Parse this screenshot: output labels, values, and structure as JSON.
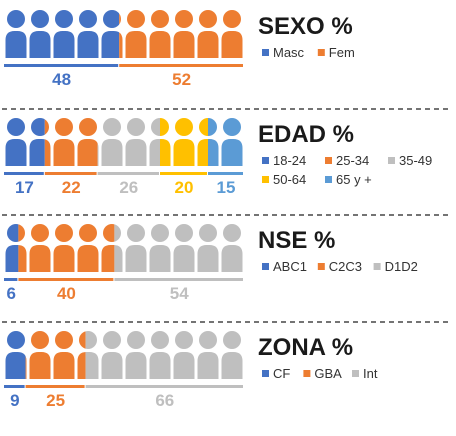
{
  "chart_data": [
    {
      "type": "bar",
      "title": "SEXO %",
      "categories": [
        "Masc",
        "Fem"
      ],
      "values": [
        48,
        52
      ],
      "colors": [
        "#4472c4",
        "#ed7d31"
      ],
      "legend_rows": [
        [
          "Masc",
          "Fem"
        ]
      ],
      "display": "pictogram"
    },
    {
      "type": "bar",
      "title": "EDAD %",
      "categories": [
        "18-24",
        "25-34",
        "35-49",
        "50-64",
        "65 y +"
      ],
      "values": [
        17,
        22,
        26,
        20,
        15
      ],
      "colors": [
        "#4472c4",
        "#ed7d31",
        "#bfbfbf",
        "#ffc000",
        "#5b9bd5"
      ],
      "legend_rows": [
        [
          "18-24",
          "25-34",
          "35-49"
        ],
        [
          "50-64",
          "65 y +"
        ]
      ],
      "display": "pictogram"
    },
    {
      "type": "bar",
      "title": "NSE %",
      "categories": [
        "ABC1",
        "C2C3",
        "D1D2"
      ],
      "values": [
        6,
        40,
        54
      ],
      "colors": [
        "#4472c4",
        "#ed7d31",
        "#bfbfbf"
      ],
      "legend_rows": [
        [
          "ABC1",
          "C2C3",
          "D1D2"
        ]
      ],
      "display": "pictogram"
    },
    {
      "type": "bar",
      "title": "ZONA %",
      "categories": [
        "CF",
        "GBA",
        "Int"
      ],
      "values": [
        9,
        25,
        66
      ],
      "colors": [
        "#4472c4",
        "#ed7d31",
        "#bfbfbf"
      ],
      "legend_rows": [
        [
          "CF",
          "GBA",
          "Int"
        ]
      ],
      "display": "pictogram"
    }
  ]
}
